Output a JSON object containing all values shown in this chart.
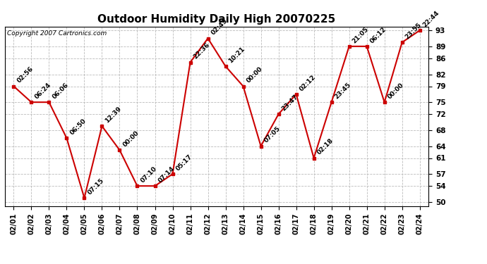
{
  "title": "Outdoor Humidity Daily High 20070225",
  "copyright": "Copyright 2007 Cartronics.com",
  "dates": [
    "02/01",
    "02/02",
    "02/03",
    "02/04",
    "02/05",
    "02/06",
    "02/07",
    "02/08",
    "02/09",
    "02/10",
    "02/11",
    "02/12",
    "02/13",
    "02/14",
    "02/15",
    "02/16",
    "02/17",
    "02/18",
    "02/19",
    "02/20",
    "02/21",
    "02/22",
    "02/23",
    "02/24"
  ],
  "values": [
    79,
    75,
    75,
    66,
    51,
    69,
    63,
    54,
    54,
    57,
    85,
    91,
    84,
    79,
    64,
    72,
    77,
    61,
    75,
    89,
    89,
    75,
    90,
    93
  ],
  "labels": [
    "02:56",
    "06:24",
    "06:06",
    "06:50",
    "07:15",
    "12:39",
    "00:00",
    "07:10",
    "07:14",
    "05:17",
    "22:36",
    "02:45",
    "10:21",
    "00:00",
    "07:05",
    "23:47",
    "02:12",
    "02:18",
    "23:45",
    "21:05",
    "06:12",
    "00:00",
    "23:55",
    "22:44"
  ],
  "line_color": "#cc0000",
  "marker_color": "#cc0000",
  "bg_color": "#ffffff",
  "grid_color": "#bbbbbb",
  "ylim_min": 50,
  "ylim_max": 93,
  "yticks": [
    50,
    54,
    57,
    61,
    64,
    68,
    72,
    75,
    79,
    82,
    86,
    89,
    93
  ],
  "title_fontsize": 11,
  "label_fontsize": 6.5,
  "xtick_fontsize": 7,
  "ytick_fontsize": 7.5
}
